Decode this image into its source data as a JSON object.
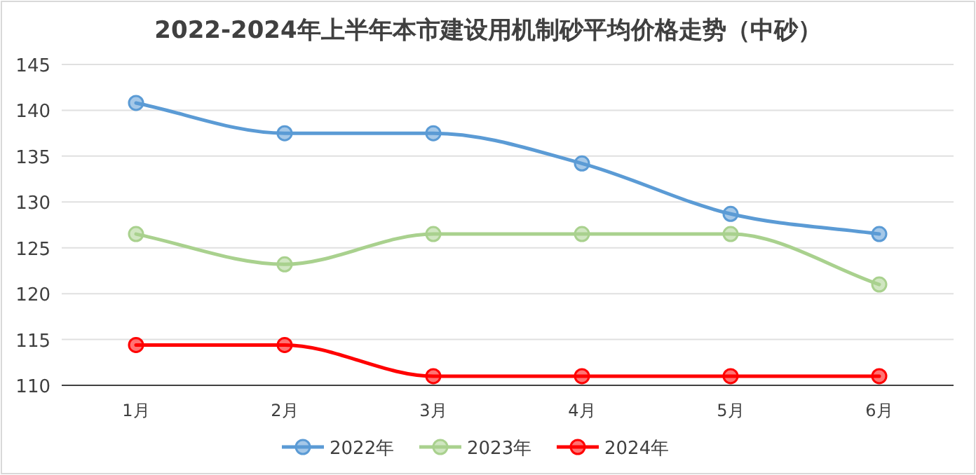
{
  "chart_data": {
    "type": "line",
    "title": "2022-2024年上半年本市建设用机制砂平均价格走势（中砂）",
    "categories": [
      "1月",
      "2月",
      "3月",
      "4月",
      "5月",
      "6月"
    ],
    "series": [
      {
        "name": "2022年",
        "color": "#5b9bd5",
        "values": [
          140.8,
          137.5,
          137.5,
          134.2,
          128.7,
          126.5
        ]
      },
      {
        "name": "2023年",
        "color": "#a9d18e",
        "values": [
          126.5,
          123.2,
          126.5,
          126.5,
          126.5,
          121
        ]
      },
      {
        "name": "2024年",
        "color": "#ff0000",
        "values": [
          114.4,
          114.4,
          111,
          111,
          111,
          111
        ]
      }
    ],
    "ylim": [
      110,
      145
    ],
    "yticks": [
      110,
      115,
      120,
      125,
      130,
      135,
      140,
      145
    ],
    "grid": "y",
    "legend": "bottom",
    "marker": "circle"
  }
}
